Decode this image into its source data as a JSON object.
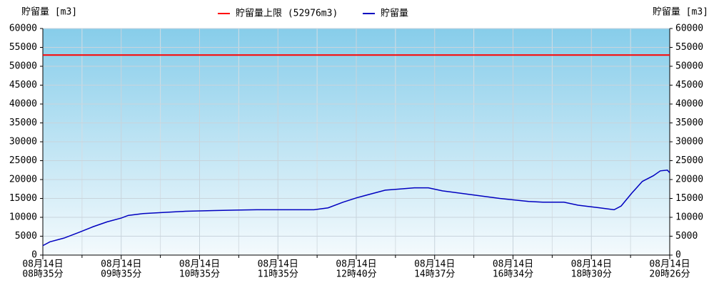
{
  "chart_data": {
    "type": "line",
    "ylabel": "貯留量 [m3]",
    "y2label": "貯留量 [m3]",
    "limit": {
      "name": "貯留量上限 (52976m3)",
      "value": 52976,
      "color": "#ff0000"
    },
    "x": [
      0,
      0.09,
      0.27,
      0.46,
      0.64,
      0.82,
      1.0,
      1.09,
      1.28,
      1.55,
      1.82,
      2.19,
      2.46,
      2.73,
      3.1,
      3.46,
      3.64,
      3.83,
      4.01,
      4.19,
      4.37,
      4.56,
      4.74,
      4.92,
      5.1,
      5.47,
      5.83,
      6.2,
      6.38,
      6.65,
      6.83,
      7.11,
      7.29,
      7.38,
      7.52,
      7.65,
      7.79,
      7.88,
      7.97,
      8.0
    ],
    "series": [
      {
        "name": "貯留量",
        "color": "#0000c0",
        "values": [
          2500,
          3500,
          4500,
          6000,
          7500,
          8800,
          9800,
          10500,
          11000,
          11300,
          11600,
          11800,
          11900,
          12000,
          12000,
          12000,
          12500,
          14000,
          15200,
          16200,
          17200,
          17500,
          17800,
          17800,
          17000,
          16000,
          15000,
          14200,
          14000,
          14000,
          13200,
          12500,
          12000,
          13000,
          16500,
          19500,
          21000,
          22300,
          22500,
          21800
        ]
      }
    ],
    "xlim": [
      0,
      8
    ],
    "xticks": [
      {
        "value": 0,
        "label": [
          "08月14日",
          "08時35分"
        ]
      },
      {
        "value": 1,
        "label": [
          "08月14日",
          "09時35分"
        ]
      },
      {
        "value": 2,
        "label": [
          "08月14日",
          "10時35分"
        ]
      },
      {
        "value": 3,
        "label": [
          "08月14日",
          "11時35分"
        ]
      },
      {
        "value": 4,
        "label": [
          "08月14日",
          "12時40分"
        ]
      },
      {
        "value": 5,
        "label": [
          "08月14日",
          "14時37分"
        ]
      },
      {
        "value": 6,
        "label": [
          "08月14日",
          "16時34分"
        ]
      },
      {
        "value": 7,
        "label": [
          "08月14日",
          "18時30分"
        ]
      },
      {
        "value": 8,
        "label": [
          "08月14日",
          "20時26分"
        ]
      }
    ],
    "ylim": [
      0,
      60000
    ],
    "yticks": [
      0,
      5000,
      10000,
      15000,
      20000,
      25000,
      30000,
      35000,
      40000,
      45000,
      50000,
      55000,
      60000
    ],
    "y2lim": [
      0,
      60000
    ],
    "y2ticks": [
      0,
      5000,
      10000,
      15000,
      20000,
      25000,
      30000,
      35000,
      40000,
      45000,
      50000,
      55000,
      60000
    ],
    "grid": true
  }
}
